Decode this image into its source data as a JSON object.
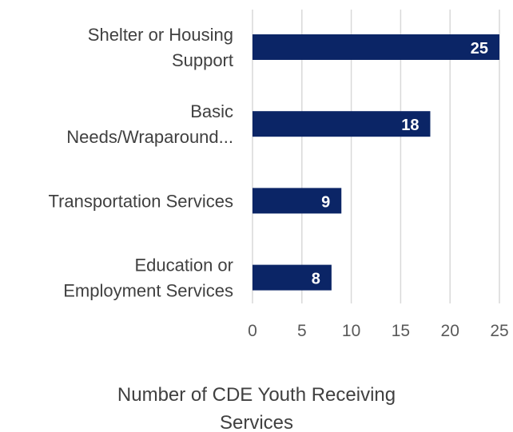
{
  "chart_data": {
    "type": "bar",
    "orientation": "horizontal",
    "categories": [
      [
        "Shelter or Housing",
        "Support"
      ],
      [
        "Basic",
        "Needs/Wraparound..."
      ],
      [
        "Transportation Services"
      ],
      [
        "Education or",
        "Employment Services"
      ]
    ],
    "values": [
      25,
      18,
      9,
      8
    ],
    "data_labels": [
      "25",
      "18",
      "9",
      "8"
    ],
    "xlim": [
      0,
      25
    ],
    "xticks": [
      "0",
      "5",
      "10",
      "15",
      "20",
      "25"
    ],
    "xlabel": [
      "Number of CDE Youth Receiving",
      "Services"
    ],
    "grid": "vertical",
    "legend": "none",
    "colors": {
      "bar": "#0b2566",
      "grid": "#d9d9d9",
      "text": "#404040",
      "label": "#ffffff"
    }
  }
}
